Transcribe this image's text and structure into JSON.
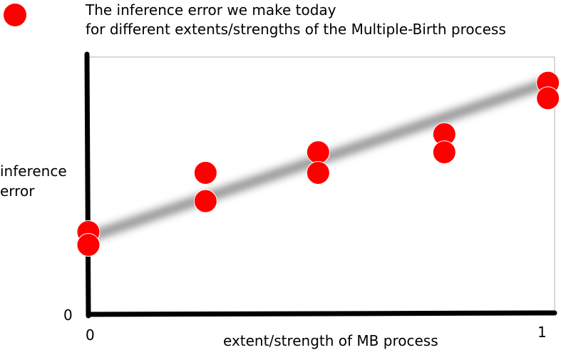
{
  "colors": {
    "marker": "#ff0000",
    "axis": "#000000",
    "frame": "#b3b3b3",
    "trend": "#8c8c8c"
  },
  "chart_data": {
    "type": "scatter",
    "title_lines": [
      "The inference error we make today",
      "for different extents/strengths of the Multiple-Birth process"
    ],
    "xlabel": "extent/strength of MB process",
    "ylabel_lines": [
      "inference",
      "error"
    ],
    "x_ticks": [
      {
        "value": 0,
        "label": "0"
      },
      {
        "value": 1,
        "label": "1"
      }
    ],
    "y_ticks": [
      {
        "value": 0,
        "label": "0"
      }
    ],
    "xlim": [
      0,
      1
    ],
    "ylim": [
      0,
      1
    ],
    "grid": false,
    "legend": "top-left",
    "series": [
      {
        "points": [
          {
            "x": 0.0,
            "y": 0.32
          },
          {
            "x": 0.0,
            "y": 0.27
          },
          {
            "x": 0.26,
            "y": 0.55
          },
          {
            "x": 0.26,
            "y": 0.44
          },
          {
            "x": 0.51,
            "y": 0.63
          },
          {
            "x": 0.51,
            "y": 0.55
          },
          {
            "x": 0.79,
            "y": 0.7
          },
          {
            "x": 0.79,
            "y": 0.63
          },
          {
            "x": 1.02,
            "y": 0.9
          },
          {
            "x": 1.02,
            "y": 0.84
          }
        ]
      }
    ],
    "trend_line": {
      "start": {
        "x": 0.0,
        "y": 0.3
      },
      "end": {
        "x": 1.02,
        "y": 0.9
      }
    }
  }
}
